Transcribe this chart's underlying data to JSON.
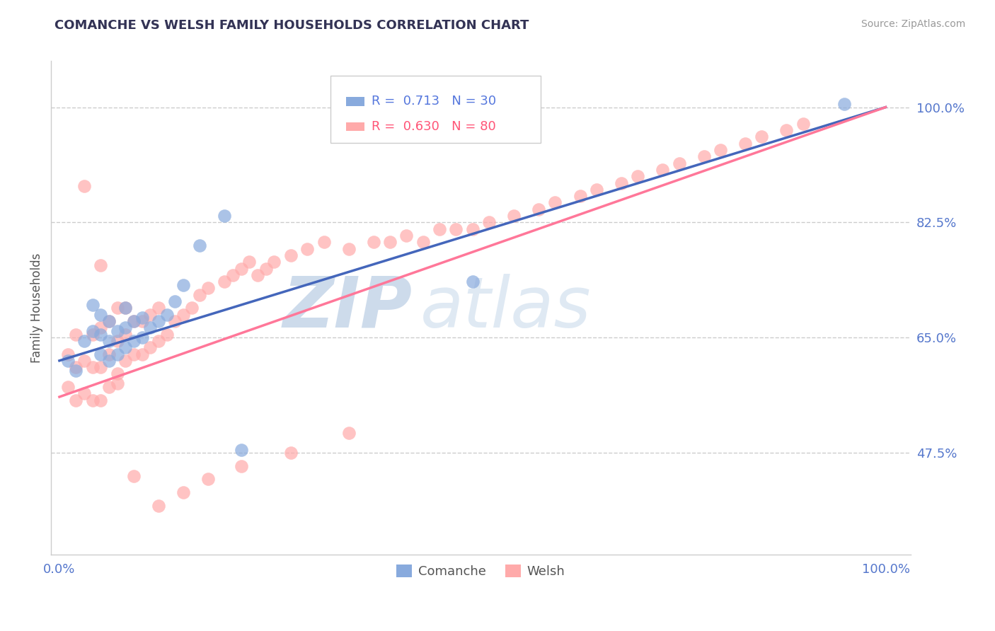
{
  "title": "COMANCHE VS WELSH FAMILY HOUSEHOLDS CORRELATION CHART",
  "ylabel": "Family Households",
  "source": "Source: ZipAtlas.com",
  "yticks": [
    0.475,
    0.65,
    0.825,
    1.0
  ],
  "ytick_labels": [
    "47.5%",
    "65.0%",
    "82.5%",
    "100.0%"
  ],
  "legend_blue_r": "0.713",
  "legend_blue_n": "30",
  "legend_pink_r": "0.630",
  "legend_pink_n": "80",
  "blue_color": "#88AADD",
  "pink_color": "#FFAAAA",
  "blue_line_color": "#4466BB",
  "pink_line_color": "#FF7799",
  "blue_line_x0": 0.0,
  "blue_line_y0": 0.615,
  "blue_line_x1": 1.0,
  "blue_line_y1": 1.0,
  "pink_line_x0": 0.0,
  "pink_line_y0": 0.56,
  "pink_line_x1": 1.0,
  "pink_line_y1": 1.0,
  "ymin": 0.32,
  "ymax": 1.07,
  "xmin": -0.01,
  "xmax": 1.03,
  "comanche_x": [
    0.01,
    0.02,
    0.03,
    0.04,
    0.04,
    0.05,
    0.05,
    0.05,
    0.06,
    0.06,
    0.06,
    0.07,
    0.07,
    0.08,
    0.08,
    0.08,
    0.09,
    0.09,
    0.1,
    0.1,
    0.11,
    0.12,
    0.13,
    0.14,
    0.15,
    0.17,
    0.2,
    0.22,
    0.5,
    0.95
  ],
  "comanche_y": [
    0.615,
    0.6,
    0.645,
    0.66,
    0.7,
    0.625,
    0.655,
    0.685,
    0.615,
    0.645,
    0.675,
    0.625,
    0.66,
    0.635,
    0.665,
    0.695,
    0.645,
    0.675,
    0.65,
    0.68,
    0.665,
    0.675,
    0.685,
    0.705,
    0.73,
    0.79,
    0.835,
    0.48,
    0.735,
    1.005
  ],
  "welsh_x": [
    0.01,
    0.01,
    0.02,
    0.02,
    0.02,
    0.03,
    0.03,
    0.04,
    0.04,
    0.04,
    0.05,
    0.05,
    0.05,
    0.06,
    0.06,
    0.06,
    0.07,
    0.07,
    0.07,
    0.08,
    0.08,
    0.08,
    0.09,
    0.09,
    0.1,
    0.1,
    0.11,
    0.11,
    0.12,
    0.12,
    0.13,
    0.14,
    0.15,
    0.16,
    0.17,
    0.18,
    0.2,
    0.21,
    0.22,
    0.23,
    0.24,
    0.25,
    0.26,
    0.28,
    0.3,
    0.32,
    0.35,
    0.38,
    0.4,
    0.42,
    0.44,
    0.46,
    0.48,
    0.5,
    0.52,
    0.55,
    0.58,
    0.6,
    0.63,
    0.65,
    0.68,
    0.7,
    0.73,
    0.75,
    0.78,
    0.8,
    0.83,
    0.85,
    0.88,
    0.9,
    0.03,
    0.05,
    0.07,
    0.09,
    0.12,
    0.15,
    0.18,
    0.22,
    0.28,
    0.35
  ],
  "welsh_y": [
    0.575,
    0.625,
    0.555,
    0.605,
    0.655,
    0.565,
    0.615,
    0.555,
    0.605,
    0.655,
    0.555,
    0.605,
    0.665,
    0.575,
    0.625,
    0.675,
    0.595,
    0.645,
    0.695,
    0.615,
    0.655,
    0.695,
    0.625,
    0.675,
    0.625,
    0.675,
    0.635,
    0.685,
    0.645,
    0.695,
    0.655,
    0.675,
    0.685,
    0.695,
    0.715,
    0.725,
    0.735,
    0.745,
    0.755,
    0.765,
    0.745,
    0.755,
    0.765,
    0.775,
    0.785,
    0.795,
    0.785,
    0.795,
    0.795,
    0.805,
    0.795,
    0.815,
    0.815,
    0.815,
    0.825,
    0.835,
    0.845,
    0.855,
    0.865,
    0.875,
    0.885,
    0.895,
    0.905,
    0.915,
    0.925,
    0.935,
    0.945,
    0.955,
    0.965,
    0.975,
    0.88,
    0.76,
    0.58,
    0.44,
    0.395,
    0.415,
    0.435,
    0.455,
    0.475,
    0.505
  ]
}
